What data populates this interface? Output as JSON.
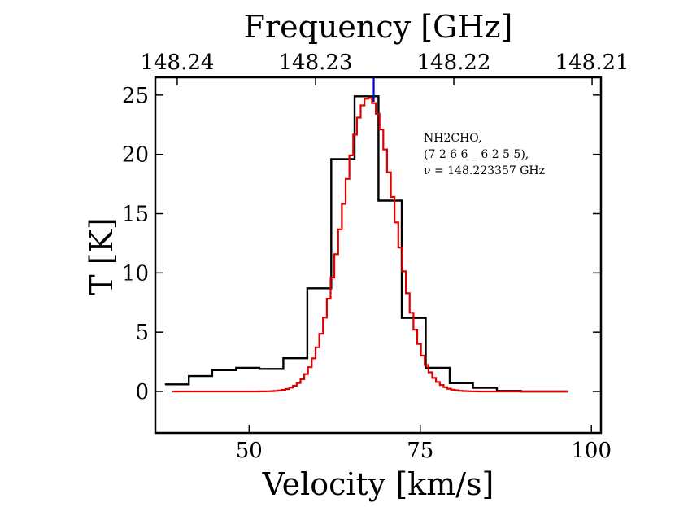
{
  "chart_data": {
    "type": "line",
    "xlabel": "Velocity [km/s]",
    "ylabel": "T [K]",
    "top_xlabel": "Frequency [GHz]",
    "xlim": [
      36.3,
      101.4
    ],
    "ylim": [
      -3.5,
      26.5
    ],
    "x_ticks": [
      50,
      75,
      100
    ],
    "y_ticks": [
      0,
      5,
      10,
      15,
      20,
      25
    ],
    "top_ticks": [
      {
        "label": "148.24",
        "velocity": 39.5
      },
      {
        "label": "148.23",
        "velocity": 59.7
      },
      {
        "label": "148.22",
        "velocity": 79.9
      },
      {
        "label": "148.21",
        "velocity": 100.1
      }
    ],
    "line_marker_velocity": 68.2,
    "annotation": [
      "NH2CHO,",
      "(7 2 6 6 _ 6 2 5 5),",
      "ν = 148.223357 GHz"
    ],
    "colors": {
      "observed": "#000000",
      "model": "#e00000",
      "marker": "#0000cc"
    },
    "series": [
      {
        "name": "observed",
        "style": "step",
        "edges": [
          37.7,
          41.2,
          44.6,
          48.1,
          51.5,
          55.0,
          58.5,
          62.0,
          65.4,
          68.9,
          72.3,
          75.8,
          79.3,
          82.7,
          86.2,
          89.7,
          93.1,
          96.6
        ],
        "values": [
          0.6,
          1.3,
          1.8,
          2.0,
          1.9,
          2.8,
          8.7,
          19.6,
          24.9,
          16.1,
          6.2,
          2.0,
          0.7,
          0.3,
          0.05,
          0.0,
          0.0
        ]
      },
      {
        "name": "model",
        "style": "gaussian",
        "x_range": [
          38.8,
          96.6
        ],
        "center": 67.2,
        "sigma": 3.85,
        "amplitude": 24.8
      }
    ]
  }
}
